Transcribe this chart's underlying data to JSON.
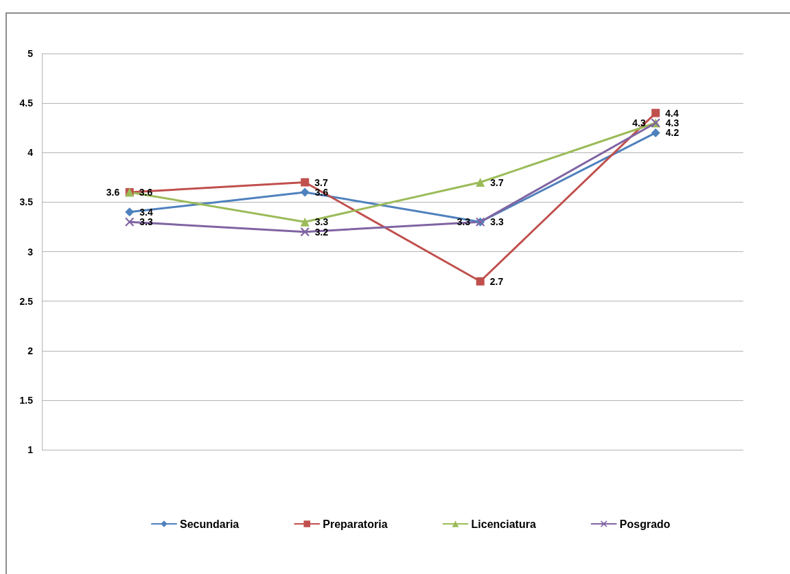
{
  "chart_data": {
    "type": "line",
    "categories": [
      null,
      null,
      null,
      null
    ],
    "series": [
      {
        "name": "Secundaria",
        "color": "#4f81bd",
        "marker": "diamond",
        "values": [
          3.4,
          3.6,
          3.3,
          4.2
        ]
      },
      {
        "name": "Preparatoria",
        "color": "#c0504d",
        "marker": "square",
        "values": [
          3.6,
          3.7,
          2.7,
          4.4
        ]
      },
      {
        "name": "Licenciatura",
        "color": "#9bbb59",
        "marker": "triangle",
        "values": [
          3.6,
          3.3,
          3.7,
          4.3
        ]
      },
      {
        "name": "Posgrado",
        "color": "#8064a2",
        "marker": "cross",
        "values": [
          3.3,
          3.2,
          3.3,
          4.3
        ]
      }
    ],
    "ylim": [
      1,
      5
    ],
    "yticks": [
      1,
      1.5,
      2,
      2.5,
      3,
      3.5,
      4,
      4.5,
      5
    ],
    "grid": "y",
    "legend": "bottom",
    "data_labels": true
  }
}
